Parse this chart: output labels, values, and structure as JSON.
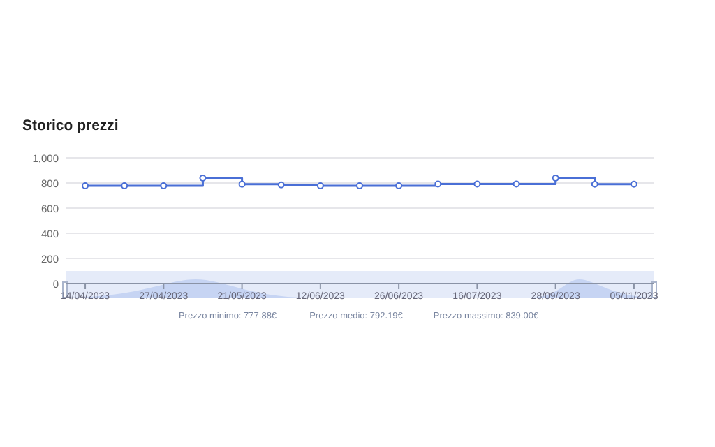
{
  "chart_data": {
    "type": "step",
    "title": "Storico prezzi",
    "categories": [
      "14/04/2023",
      null,
      "27/04/2023",
      null,
      "21/05/2023",
      null,
      "12/06/2023",
      null,
      "26/06/2023",
      null,
      "16/07/2023",
      null,
      "28/09/2023",
      null,
      "05/11/2023"
    ],
    "series": [
      {
        "color": "#4a6fd6",
        "values": [
          778,
          778,
          778,
          839,
          790,
          785,
          778,
          778,
          778,
          792,
          792,
          792,
          839,
          790,
          790
        ]
      }
    ],
    "ylim": [
      0,
      1000
    ],
    "yticks": [
      0,
      200,
      400,
      600,
      800,
      {
        "value": 1000,
        "label": "1,000"
      }
    ],
    "grid": "y",
    "marker": "circle",
    "line_style": "solid",
    "annotations": [
      "Prezzo minimo: 777.88€",
      "Prezzo medio: 792.19€",
      "Prezzo massimo: 839.00€"
    ]
  }
}
